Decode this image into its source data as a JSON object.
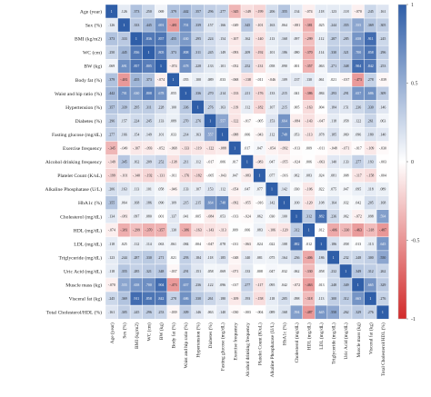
{
  "chart_data": {
    "type": "heatmap",
    "title": "",
    "xlabel": "",
    "ylabel": "",
    "variables": [
      "Age (year)",
      "Sex (%)",
      "BMI (kg/m2)",
      "WC (cm)",
      "BW (kg)",
      "Body fat (%)",
      "Waist and hip ratio (%)",
      "Hypertension (%)",
      "Diabetes (%)",
      "Fasting glucose (mg/dL)",
      "Exercise frequency",
      "Alcohol drinking frequency",
      "Platelet Count (K/uL)",
      "Alkaline Phosphatase (U/L)",
      "HbA1c (%)",
      "Cholesterol (mg/dL)",
      "HDL (mg/dL)",
      "LDL (mg/dL)",
      "Triglyceride (mg/dL)",
      "Uric Acid (mg/dL)",
      "Muscle mass (kg)",
      "Visceral fat (kg)",
      "Total Cholesterol/HDL (%)"
    ],
    "values": [
      [
        1,
        ".126",
        ".373",
        ".250",
        ".069",
        ".379",
        ".442",
        ".357",
        ".296",
        ".277",
        "-.345",
        "-.149",
        "-.199",
        ".206",
        ".355",
        ".134",
        "-.074",
        ".118",
        ".123",
        ".118",
        "-.070",
        ".245",
        ".161"
      ],
      [
        ".126",
        1,
        ".333",
        ".445",
        ".691",
        "-.481",
        ".701",
        ".339",
        ".157",
        ".166",
        "-.049",
        ".345",
        "-.101",
        ".163",
        ".064",
        "-.081",
        "-.381",
        ".025",
        ".244",
        ".355",
        ".555",
        ".369",
        ".305"
      ],
      [
        ".373",
        ".333",
        1,
        ".836",
        ".857",
        ".455",
        ".630",
        ".295",
        ".224",
        ".154",
        "-.107",
        ".162",
        "-.140",
        ".113",
        ".168",
        ".097",
        "-.299",
        ".112",
        ".287",
        ".285",
        ".658",
        ".911",
        ".245"
      ],
      [
        ".250",
        ".445",
        ".836",
        1,
        ".805",
        ".373",
        ".808",
        ".311",
        ".245",
        ".149",
        "-.093",
        ".209",
        "-.192",
        ".101",
        ".186",
        ".080",
        "-.370",
        ".114",
        ".330",
        ".321",
        ".700",
        ".858",
        ".296"
      ],
      [
        ".069",
        ".691",
        ".857",
        ".805",
        1,
        "-.074",
        ".678",
        ".228",
        ".133",
        ".101",
        "-.052",
        ".252",
        "-.131",
        ".058",
        ".090",
        ".001",
        "-.357",
        ".063",
        ".271",
        ".348",
        ".904",
        ".842",
        ".253"
      ],
      [
        ".379",
        "-.481",
        ".455",
        ".373",
        "-.074",
        1,
        ".055",
        ".100",
        ".089",
        ".033",
        "-.068",
        "-.138",
        "-.011",
        "-.046",
        ".109",
        ".137",
        ".130",
        ".061",
        ".021",
        "-.037",
        "-.473",
        ".278",
        "-.039"
      ],
      [
        ".442",
        ".701",
        ".630",
        ".808",
        ".678",
        ".055",
        1,
        ".336",
        ".270",
        ".214",
        "-.133",
        ".211",
        "-.176",
        ".133",
        ".215",
        ".041",
        "-.386",
        ".084",
        ".293",
        ".291",
        ".657",
        ".686",
        ".309"
      ],
      [
        ".357",
        ".339",
        ".295",
        ".311",
        ".228",
        ".100",
        ".336",
        1,
        ".276",
        ".163",
        "-.119",
        ".112",
        "-.182",
        ".107",
        ".215",
        ".005",
        "-.163",
        ".004",
        ".184",
        ".151",
        ".236",
        ".330",
        ".146"
      ],
      [
        ".296",
        ".157",
        ".224",
        ".245",
        ".133",
        ".089",
        ".270",
        ".276",
        1,
        ".557",
        "-.122",
        "-.017",
        "-.005",
        ".153",
        ".664",
        "-.084",
        "-.143",
        "-.047",
        ".118",
        ".058",
        ".122",
        ".261",
        ".063"
      ],
      [
        ".277",
        ".166",
        ".154",
        ".149",
        ".101",
        ".033",
        ".214",
        ".163",
        ".557",
        1,
        "-.088",
        ".006",
        "-.043",
        ".112",
        ".748",
        ".053",
        "-.113",
        ".078",
        ".185",
        ".069",
        ".096",
        ".180",
        ".140"
      ],
      [
        "-.345",
        "-.049",
        "-.107",
        "-.093",
        "-.052",
        "-.068",
        "-.133",
        "-.119",
        "-.122",
        "-.088",
        1,
        ".017",
        ".047",
        "-.054",
        "-.092",
        "-.013",
        ".009",
        "-.011",
        "-.048",
        "-.071",
        "-.017",
        "-.109",
        "-.030"
      ],
      [
        "-.149",
        ".345",
        ".162",
        ".209",
        ".252",
        "-.138",
        ".211",
        ".112",
        "-.017",
        ".006",
        ".017",
        1,
        "-.083",
        ".047",
        "-.055",
        "-.024",
        ".006",
        "-.063",
        ".140",
        ".133",
        ".277",
        ".193",
        "-.003"
      ],
      [
        "-.199",
        "-.101",
        "-.140",
        "-.192",
        "-.131",
        "-.011",
        "-.176",
        "-.182",
        "-.005",
        "-.043",
        ".047",
        "-.083",
        1,
        ".077",
        "-.016",
        ".062",
        ".083",
        ".024",
        ".081",
        ".008",
        "-.117",
        "-.158",
        "-.004"
      ],
      [
        ".206",
        ".163",
        ".113",
        ".101",
        ".058",
        "-.046",
        ".133",
        ".107",
        ".153",
        ".112",
        "-.054",
        ".047",
        ".077",
        1,
        ".142",
        ".030",
        "-.106",
        ".022",
        ".075",
        ".047",
        ".095",
        ".118",
        ".089"
      ],
      [
        ".355",
        ".064",
        ".168",
        ".186",
        ".090",
        ".109",
        ".215",
        ".215",
        ".664",
        ".748",
        "-.092",
        "-.055",
        "-.016",
        ".142",
        1,
        ".100",
        "-.120",
        ".108",
        ".164",
        ".032",
        ".042",
        ".205",
        ".168"
      ],
      [
        ".134",
        "-.081",
        ".097",
        ".080",
        ".001",
        ".137",
        ".041",
        ".005",
        "-.084",
        ".053",
        "-.013",
        "-.024",
        ".062",
        ".030",
        ".100",
        1,
        ".312",
        ".882",
        ".236",
        ".062",
        "-.072",
        ".098",
        ".594"
      ],
      [
        "-.074",
        "-.381",
        "-.299",
        "-.370",
        "-.357",
        ".130",
        "-.386",
        "-.163",
        "-.143",
        "-.113",
        ".009",
        ".006",
        ".083",
        "-.106",
        "-.120",
        ".312",
        1,
        ".012",
        "-.406",
        "-.330",
        "-.463",
        "-.318",
        "-.487"
      ],
      [
        ".118",
        ".025",
        ".112",
        ".114",
        ".063",
        ".061",
        ".084",
        ".004",
        "-.047",
        ".078",
        "-.011",
        "-.063",
        ".024",
        ".022",
        ".108",
        ".882",
        ".012",
        1,
        ".186",
        ".058",
        ".013",
        ".113",
        ".645"
      ],
      [
        ".123",
        ".244",
        ".287",
        ".330",
        ".271",
        ".021",
        ".293",
        ".184",
        ".118",
        ".185",
        "-.048",
        ".140",
        ".081",
        ".075",
        ".164",
        ".236",
        "-.406",
        ".186",
        1,
        ".232",
        ".248",
        ".300",
        ".550"
      ],
      [
        ".118",
        ".355",
        ".285",
        ".321",
        ".348",
        "-.037",
        ".291",
        ".151",
        ".058",
        ".069",
        "-.071",
        ".133",
        ".008",
        ".047",
        ".032",
        ".062",
        "-.330",
        ".058",
        ".232",
        1,
        ".349",
        ".312",
        ".262"
      ],
      [
        "-.070",
        ".555",
        ".658",
        ".700",
        ".904",
        "-.473",
        ".657",
        ".236",
        ".122",
        ".096",
        "-.017",
        ".277",
        "-.117",
        ".095",
        ".042",
        "-.072",
        "-.463",
        ".013",
        ".248",
        ".349",
        1,
        ".665",
        ".329"
      ],
      [
        ".245",
        ".369",
        ".911",
        ".858",
        ".842",
        ".278",
        ".686",
        ".330",
        ".261",
        ".180",
        "-.109",
        ".193",
        "-.158",
        ".118",
        ".205",
        ".098",
        "-.318",
        ".113",
        ".300",
        ".312",
        ".665",
        1,
        ".276"
      ],
      [
        ".161",
        ".305",
        ".245",
        ".296",
        ".253",
        "-.039",
        ".309",
        ".146",
        ".063",
        ".140",
        "-.030",
        "-.003",
        "-.004",
        ".089",
        ".168",
        ".594",
        "-.487",
        ".645",
        ".550",
        ".262",
        ".329",
        ".276",
        1
      ]
    ],
    "colorbar": {
      "range": [
        -1,
        1
      ],
      "ticks": [
        "1",
        "0.5",
        "0",
        "-0.5",
        "-1"
      ],
      "colors": {
        "positive": "#2f5ea8",
        "zero": "#ffffff",
        "negative": "#d22a2a"
      }
    },
    "grid": true,
    "legend": "right"
  }
}
